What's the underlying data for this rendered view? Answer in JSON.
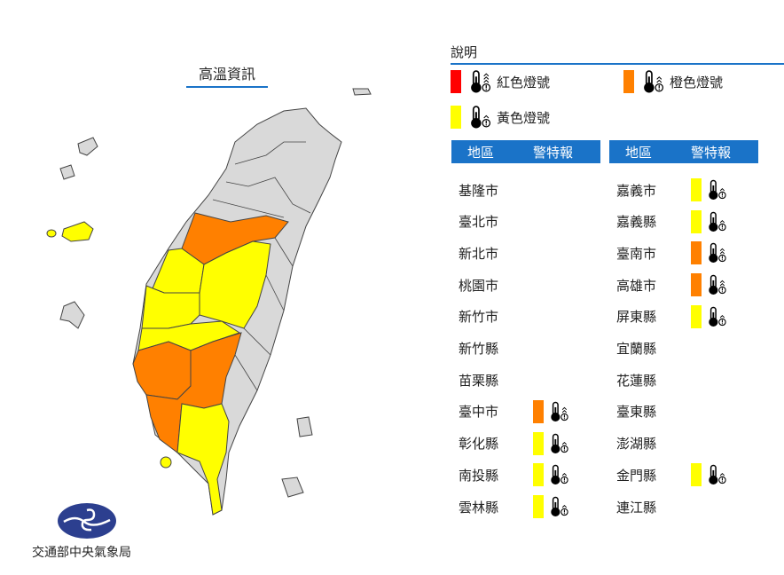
{
  "map": {
    "title": "高溫資訊",
    "agency": "交通部中央氣象局",
    "logo_color": "#2c3f8f",
    "colors": {
      "none": "#d9d9d9",
      "red": "#ff0000",
      "orange": "#ff8000",
      "yellow": "#ffff00"
    }
  },
  "legend": {
    "title": "說明",
    "items": [
      {
        "level": "red",
        "label": "紅色燈號",
        "icon": "thermometer-three-arrows-icon"
      },
      {
        "level": "orange",
        "label": "橙色燈號",
        "icon": "thermometer-two-arrows-icon"
      },
      {
        "level": "yellow",
        "label": "黃色燈號",
        "icon": "thermometer-one-arrow-icon"
      }
    ]
  },
  "table": {
    "headers": {
      "region": "地區",
      "warning": "警特報"
    },
    "left": [
      {
        "name": "基隆市",
        "level": null
      },
      {
        "name": "臺北市",
        "level": null
      },
      {
        "name": "新北市",
        "level": null
      },
      {
        "name": "桃園市",
        "level": null
      },
      {
        "name": "新竹市",
        "level": null
      },
      {
        "name": "新竹縣",
        "level": null
      },
      {
        "name": "苗栗縣",
        "level": null
      },
      {
        "name": "臺中市",
        "level": "orange"
      },
      {
        "name": "彰化縣",
        "level": "yellow"
      },
      {
        "name": "南投縣",
        "level": "yellow"
      },
      {
        "name": "雲林縣",
        "level": "yellow"
      }
    ],
    "right": [
      {
        "name": "嘉義市",
        "level": "yellow"
      },
      {
        "name": "嘉義縣",
        "level": "yellow"
      },
      {
        "name": "臺南市",
        "level": "orange"
      },
      {
        "name": "高雄市",
        "level": "orange"
      },
      {
        "name": "屏東縣",
        "level": "yellow"
      },
      {
        "name": "宜蘭縣",
        "level": null
      },
      {
        "name": "花蓮縣",
        "level": null
      },
      {
        "name": "臺東縣",
        "level": null
      },
      {
        "name": "澎湖縣",
        "level": null
      },
      {
        "name": "金門縣",
        "level": "yellow"
      },
      {
        "name": "連江縣",
        "level": null
      }
    ]
  }
}
